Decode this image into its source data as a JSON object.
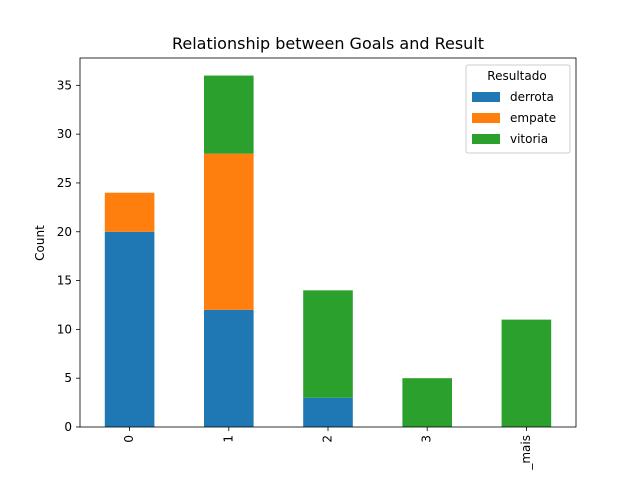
{
  "chart_data": {
    "type": "bar",
    "stacked": true,
    "title": "Relationship between Goals and Result",
    "xlabel": "",
    "ylabel": "Count",
    "categories": [
      "0",
      "1",
      "2",
      "3",
      "_mais"
    ],
    "series": [
      {
        "name": "derrota",
        "color": "#1f77b4",
        "values": [
          20,
          12,
          3,
          0,
          0
        ]
      },
      {
        "name": "empate",
        "color": "#ff7f0e",
        "values": [
          4,
          16,
          0,
          0,
          0
        ]
      },
      {
        "name": "vitoria",
        "color": "#2ca02c",
        "values": [
          0,
          8,
          11,
          5,
          11
        ]
      }
    ],
    "ylim": [
      0,
      37.8
    ],
    "yticks": [
      "0",
      "5",
      "10",
      "15",
      "20",
      "25",
      "30",
      "35"
    ],
    "legend": {
      "title": "Resultado",
      "placement": "top-right"
    },
    "grid": false
  }
}
